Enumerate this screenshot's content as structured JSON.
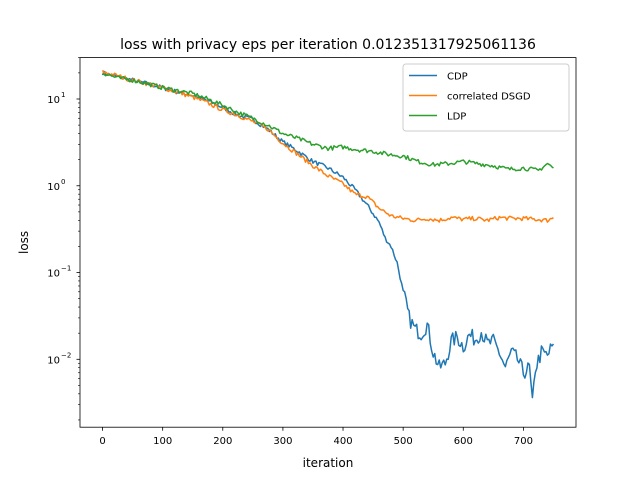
{
  "chart_data": {
    "type": "line",
    "title": "loss with privacy eps per iteration 0.012351317925061136",
    "xlabel": "iteration",
    "ylabel": "loss",
    "xscale": "linear",
    "yscale": "log",
    "xlim": [
      -37.5,
      787.5
    ],
    "ylim": [
      0.00165,
      30
    ],
    "x_ticks": [
      0,
      100,
      200,
      300,
      400,
      500,
      600,
      700
    ],
    "y_ticks": [
      {
        "value": 0.01,
        "base": "10",
        "exp": "−2"
      },
      {
        "value": 0.1,
        "base": "10",
        "exp": "−1"
      },
      {
        "value": 1,
        "base": "10",
        "exp": "0"
      },
      {
        "value": 10,
        "base": "10",
        "exp": "1"
      }
    ],
    "grid": false,
    "legend_position": "top-right",
    "series": [
      {
        "name": "CDP",
        "color": "#1f77b4",
        "points": [
          [
            0,
            20
          ],
          [
            25,
            18
          ],
          [
            50,
            16.5
          ],
          [
            75,
            15
          ],
          [
            100,
            13.5
          ],
          [
            125,
            12
          ],
          [
            150,
            11
          ],
          [
            175,
            9.5
          ],
          [
            200,
            8
          ],
          [
            225,
            6.5
          ],
          [
            250,
            5.8
          ],
          [
            275,
            4.5
          ],
          [
            300,
            3.2
          ],
          [
            325,
            2.5
          ],
          [
            350,
            1.9
          ],
          [
            375,
            1.6
          ],
          [
            400,
            1.25
          ],
          [
            420,
            0.9
          ],
          [
            440,
            0.6
          ],
          [
            460,
            0.38
          ],
          [
            470,
            0.25
          ],
          [
            480,
            0.2
          ],
          [
            490,
            0.13
          ],
          [
            500,
            0.06
          ],
          [
            510,
            0.03
          ],
          [
            520,
            0.022
          ],
          [
            530,
            0.02
          ],
          [
            540,
            0.025
          ],
          [
            550,
            0.012
          ],
          [
            560,
            0.008
          ],
          [
            570,
            0.009
          ],
          [
            580,
            0.016
          ],
          [
            590,
            0.018
          ],
          [
            600,
            0.014
          ],
          [
            610,
            0.019
          ],
          [
            620,
            0.017
          ],
          [
            630,
            0.021
          ],
          [
            640,
            0.015
          ],
          [
            650,
            0.016
          ],
          [
            660,
            0.012
          ],
          [
            670,
            0.008
          ],
          [
            680,
            0.012
          ],
          [
            690,
            0.01
          ],
          [
            700,
            0.007
          ],
          [
            710,
            0.008
          ],
          [
            715,
            0.003
          ],
          [
            720,
            0.008
          ],
          [
            730,
            0.012
          ],
          [
            740,
            0.011
          ],
          [
            750,
            0.015
          ]
        ]
      },
      {
        "name": "correlated DSGD",
        "color": "#ff7f0e",
        "points": [
          [
            0,
            20.5
          ],
          [
            25,
            18.5
          ],
          [
            50,
            16.5
          ],
          [
            75,
            15
          ],
          [
            100,
            13.5
          ],
          [
            125,
            12
          ],
          [
            150,
            10.5
          ],
          [
            175,
            9
          ],
          [
            200,
            7.5
          ],
          [
            225,
            6.5
          ],
          [
            250,
            5.5
          ],
          [
            275,
            4.5
          ],
          [
            300,
            3.1
          ],
          [
            325,
            2.3
          ],
          [
            350,
            1.7
          ],
          [
            375,
            1.3
          ],
          [
            400,
            1.05
          ],
          [
            420,
            0.8
          ],
          [
            440,
            0.75
          ],
          [
            460,
            0.55
          ],
          [
            480,
            0.45
          ],
          [
            500,
            0.42
          ],
          [
            520,
            0.4
          ],
          [
            540,
            0.42
          ],
          [
            560,
            0.4
          ],
          [
            580,
            0.43
          ],
          [
            600,
            0.41
          ],
          [
            620,
            0.42
          ],
          [
            640,
            0.4
          ],
          [
            660,
            0.43
          ],
          [
            680,
            0.42
          ],
          [
            700,
            0.42
          ],
          [
            720,
            0.41
          ],
          [
            740,
            0.4
          ],
          [
            750,
            0.43
          ]
        ]
      },
      {
        "name": "LDP",
        "color": "#2ca02c",
        "points": [
          [
            0,
            20
          ],
          [
            25,
            17.5
          ],
          [
            50,
            16.5
          ],
          [
            75,
            15
          ],
          [
            100,
            13.5
          ],
          [
            125,
            12.5
          ],
          [
            150,
            11.5
          ],
          [
            175,
            10
          ],
          [
            200,
            8.5
          ],
          [
            225,
            7
          ],
          [
            250,
            6
          ],
          [
            275,
            5
          ],
          [
            300,
            4
          ],
          [
            325,
            3.5
          ],
          [
            350,
            3
          ],
          [
            375,
            2.7
          ],
          [
            400,
            2.8
          ],
          [
            425,
            2.6
          ],
          [
            450,
            2.5
          ],
          [
            475,
            2.3
          ],
          [
            500,
            2.2
          ],
          [
            525,
            1.9
          ],
          [
            550,
            1.75
          ],
          [
            575,
            1.8
          ],
          [
            600,
            1.9
          ],
          [
            625,
            1.8
          ],
          [
            650,
            1.7
          ],
          [
            675,
            1.55
          ],
          [
            700,
            1.6
          ],
          [
            725,
            1.5
          ],
          [
            740,
            1.8
          ],
          [
            750,
            1.6
          ]
        ]
      }
    ]
  }
}
